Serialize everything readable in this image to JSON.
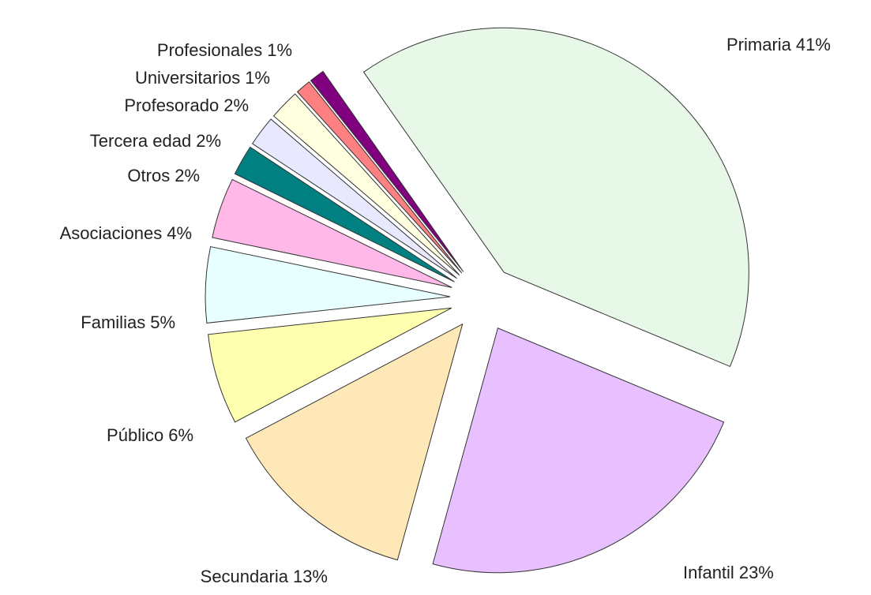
{
  "chart_data": {
    "type": "pie",
    "categories": [
      "Primaria",
      "Infantil",
      "Secundaria",
      "Público",
      "Familias",
      "Asociaciones",
      "Otros",
      "Tercera edad",
      "Profesorado",
      "Universitarios",
      "Profesionales"
    ],
    "values": [
      41,
      23,
      13,
      6,
      5,
      4,
      2,
      2,
      2,
      1,
      1
    ],
    "value_labels": [
      "41%",
      "23%",
      "13%",
      "6%",
      "5%",
      "4%",
      "2%",
      "2%",
      "2%",
      "1%",
      "1%"
    ],
    "colors": [
      "#e8f8e8",
      "#e8c0ff",
      "#ffe8b8",
      "#ffffb0",
      "#e8ffff",
      "#ffb8e8",
      "#008080",
      "#e8e8ff",
      "#ffffe0",
      "#ff8080",
      "#800080"
    ]
  }
}
